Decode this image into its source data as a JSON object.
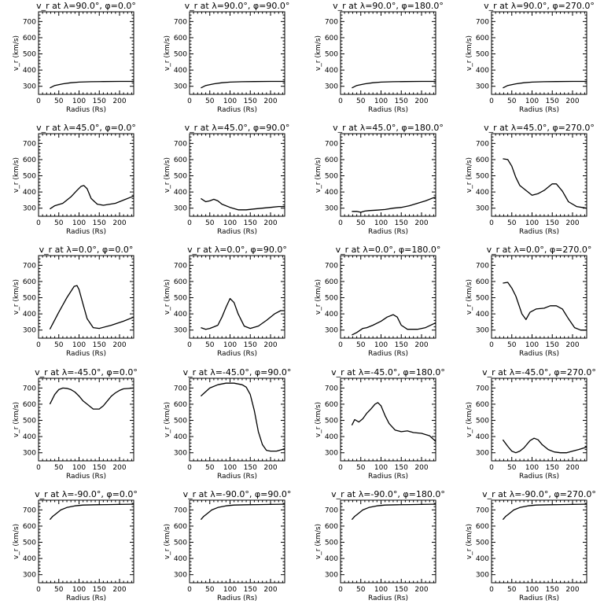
{
  "chart_data": {
    "type": "line",
    "xlabel": "Radius (Rs)",
    "ylabel": "v_r (km/s)",
    "xlim": [
      0,
      235
    ],
    "ylim": [
      250,
      760
    ],
    "xticks": [
      0,
      50,
      100,
      150,
      200
    ],
    "yticks": [
      300,
      400,
      500,
      600,
      700
    ],
    "grid": false,
    "panels": [
      {
        "title": "v_r at λ=90.0°, φ=0.0°",
        "series": [
          {
            "x": [
              28,
              40,
              60,
              80,
              100,
              130,
              160,
              200,
              235
            ],
            "y": [
              290,
              305,
              315,
              322,
              326,
              328,
              329,
              330,
              330
            ]
          }
        ]
      },
      {
        "title": "v_r at λ=90.0°, φ=90.0°",
        "series": [
          {
            "x": [
              28,
              40,
              60,
              80,
              100,
              130,
              160,
              200,
              235
            ],
            "y": [
              290,
              305,
              315,
              322,
              326,
              328,
              329,
              330,
              330
            ]
          }
        ]
      },
      {
        "title": "v_r at λ=90.0°, φ=180.0°",
        "series": [
          {
            "x": [
              28,
              40,
              60,
              80,
              100,
              130,
              160,
              200,
              235
            ],
            "y": [
              290,
              305,
              315,
              322,
              326,
              328,
              329,
              330,
              330
            ]
          }
        ]
      },
      {
        "title": "v_r at λ=90.0°, φ=270.0°",
        "series": [
          {
            "x": [
              28,
              40,
              60,
              80,
              100,
              130,
              160,
              200,
              235
            ],
            "y": [
              290,
              305,
              315,
              322,
              326,
              328,
              329,
              330,
              330
            ]
          }
        ]
      },
      {
        "title": "v_r at λ=45.0°, φ=0.0°",
        "series": [
          {
            "x": [
              28,
              40,
              60,
              80,
              95,
              105,
              112,
              120,
              130,
              145,
              160,
              190,
              210,
              235
            ],
            "y": [
              295,
              315,
              330,
              370,
              410,
              435,
              440,
              420,
              360,
              325,
              318,
              330,
              350,
              375
            ]
          }
        ]
      },
      {
        "title": "v_r at λ=45.0°, φ=90.0°",
        "series": [
          {
            "x": [
              28,
              40,
              50,
              60,
              70,
              80,
              100,
              120,
              140,
              160,
              180,
              200,
              220,
              235
            ],
            "y": [
              360,
              340,
              345,
              355,
              345,
              325,
              305,
              290,
              290,
              295,
              300,
              305,
              310,
              310
            ]
          }
        ]
      },
      {
        "title": "v_r at λ=45.0°, φ=180.0°",
        "series": [
          {
            "x": [
              28,
              40,
              50,
              60,
              70,
              90,
              110,
              130,
              150,
              170,
              190,
              210,
              235
            ],
            "y": [
              280,
              280,
              275,
              282,
              285,
              288,
              292,
              300,
              305,
              315,
              330,
              345,
              370
            ]
          }
        ]
      },
      {
        "title": "v_r at λ=45.0°, φ=270.0°",
        "series": [
          {
            "x": [
              28,
              40,
              50,
              60,
              70,
              85,
              100,
              115,
              130,
              150,
              160,
              175,
              190,
              210,
              235
            ],
            "y": [
              605,
              600,
              560,
              490,
              440,
              410,
              380,
              390,
              410,
              450,
              450,
              405,
              340,
              310,
              300
            ]
          }
        ]
      },
      {
        "title": "v_r at λ=0.0°, φ=0.0°",
        "series": [
          {
            "x": [
              28,
              50,
              70,
              88,
              95,
              100,
              110,
              120,
              135,
              150,
              180,
              210,
              235
            ],
            "y": [
              305,
              410,
              500,
              570,
              575,
              550,
              460,
              370,
              315,
              310,
              330,
              355,
              380
            ]
          }
        ]
      },
      {
        "title": "v_r at λ=0.0°, φ=90.0°",
        "series": [
          {
            "x": [
              28,
              40,
              50,
              60,
              70,
              80,
              90,
              100,
              110,
              120,
              135,
              150,
              170,
              190,
              210,
              225,
              235
            ],
            "y": [
              315,
              305,
              310,
              320,
              330,
              380,
              440,
              495,
              470,
              400,
              325,
              310,
              325,
              360,
              400,
              420,
              420
            ]
          }
        ]
      },
      {
        "title": "v_r at λ=0.0°, φ=180.0°",
        "series": [
          {
            "x": [
              28,
              40,
              55,
              65,
              80,
              100,
              115,
              130,
              140,
              150,
              165,
              190,
              210,
              235
            ],
            "y": [
              270,
              285,
              310,
              315,
              330,
              355,
              380,
              395,
              380,
              330,
              305,
              305,
              315,
              345
            ]
          }
        ]
      },
      {
        "title": "v_r at λ=0.0°, φ=270.0°",
        "series": [
          {
            "x": [
              28,
              40,
              50,
              60,
              75,
              85,
              95,
              110,
              130,
              145,
              160,
              175,
              190,
              205,
              220,
              235
            ],
            "y": [
              590,
              595,
              560,
              510,
              400,
              365,
              410,
              430,
              435,
              450,
              450,
              430,
              370,
              315,
              300,
              300
            ]
          }
        ]
      },
      {
        "title": "v_r at λ=-45.0°, φ=0.0°",
        "series": [
          {
            "x": [
              28,
              40,
              50,
              60,
              70,
              80,
              90,
              100,
              110,
              120,
              135,
              150,
              160,
              170,
              180,
              190,
              200,
              210,
              235
            ],
            "y": [
              600,
              660,
              690,
              700,
              698,
              690,
              675,
              650,
              620,
              600,
              570,
              570,
              590,
              620,
              650,
              670,
              685,
              695,
              700
            ]
          }
        ]
      },
      {
        "title": "v_r at λ=-45.0°, φ=90.0°",
        "series": [
          {
            "x": [
              28,
              50,
              70,
              90,
              110,
              130,
              140,
              150,
              160,
              170,
              180,
              190,
              200,
              215,
              235
            ],
            "y": [
              650,
              700,
              720,
              730,
              730,
              720,
              705,
              660,
              560,
              430,
              350,
              315,
              310,
              310,
              325
            ]
          }
        ]
      },
      {
        "title": "v_r at λ=-45.0°, φ=180.0°",
        "series": [
          {
            "x": [
              28,
              35,
              45,
              55,
              65,
              75,
              85,
              92,
              100,
              110,
              120,
              135,
              150,
              165,
              180,
              200,
              220,
              235
            ],
            "y": [
              470,
              505,
              490,
              510,
              545,
              570,
              600,
              610,
              590,
              530,
              480,
              440,
              430,
              435,
              425,
              420,
              405,
              370
            ]
          }
        ]
      },
      {
        "title": "v_r at λ=-45.0°, φ=270.0°",
        "series": [
          {
            "x": [
              28,
              40,
              50,
              60,
              70,
              80,
              95,
              105,
              115,
              125,
              140,
              155,
              170,
              185,
              200,
              215,
              235
            ],
            "y": [
              380,
              340,
              310,
              300,
              310,
              330,
              375,
              390,
              380,
              350,
              320,
              305,
              300,
              300,
              310,
              320,
              335
            ]
          }
        ]
      },
      {
        "title": "v_r at λ=-90.0°, φ=0.0°",
        "series": [
          {
            "x": [
              28,
              35,
              45,
              55,
              70,
              90,
              110,
              140,
              170,
              200,
              235
            ],
            "y": [
              640,
              660,
              680,
              700,
              715,
              725,
              730,
              732,
              733,
              734,
              735
            ]
          }
        ]
      },
      {
        "title": "v_r at λ=-90.0°, φ=90.0°",
        "series": [
          {
            "x": [
              28,
              35,
              45,
              55,
              70,
              90,
              110,
              140,
              170,
              200,
              235
            ],
            "y": [
              640,
              660,
              680,
              700,
              715,
              725,
              730,
              732,
              733,
              734,
              735
            ]
          }
        ]
      },
      {
        "title": "v_r at λ=-90.0°, φ=180.0°",
        "series": [
          {
            "x": [
              28,
              35,
              45,
              55,
              70,
              90,
              110,
              140,
              170,
              200,
              235
            ],
            "y": [
              640,
              660,
              680,
              700,
              715,
              725,
              730,
              732,
              733,
              734,
              735
            ]
          }
        ]
      },
      {
        "title": "v_r at λ=-90.0°, φ=270.0°",
        "series": [
          {
            "x": [
              28,
              35,
              45,
              55,
              70,
              90,
              110,
              140,
              170,
              200,
              235
            ],
            "y": [
              640,
              660,
              680,
              700,
              715,
              725,
              730,
              732,
              733,
              734,
              735
            ]
          }
        ]
      }
    ]
  }
}
